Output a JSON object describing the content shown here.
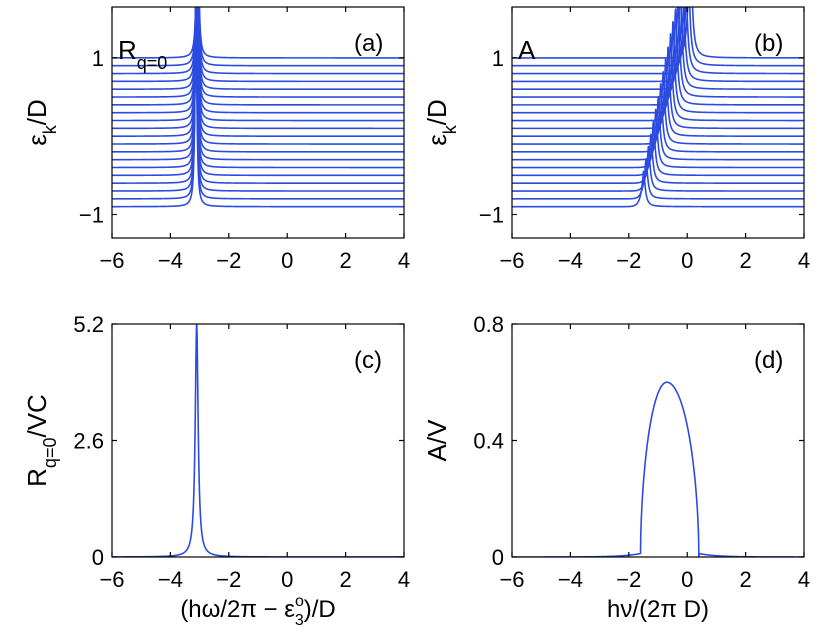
{
  "figure": {
    "line_color": "#2c4be0",
    "axis_color": "#000000"
  },
  "chart_data": [
    {
      "panel": "a",
      "type": "line",
      "panel_label": "(a)",
      "inset_label": "R",
      "inset_sub": "q=0",
      "ylabel": "ε",
      "ylabel_sub": "k",
      "ylabel_suffix": "/D",
      "xlim": [
        -6,
        4
      ],
      "ylim": [
        -1.3,
        1.65
      ],
      "xticks": [
        -6,
        -4,
        -2,
        0,
        2,
        4
      ],
      "xtick_labels": [
        "−6",
        "−4",
        "−2",
        "0",
        "2",
        "4"
      ],
      "yticks": [
        -1,
        1
      ],
      "ytick_labels": [
        "−1",
        "1"
      ],
      "series_description": "Stacked spectra, one per eps_k from -0.9 to 1.0 (20 curves), each with a sharp peak near x=-3.1",
      "offsets": [
        -0.9,
        -0.8,
        -0.7,
        -0.6,
        -0.5,
        -0.4,
        -0.3,
        -0.2,
        -0.1,
        0.0,
        0.1,
        0.2,
        0.3,
        0.4,
        0.5,
        0.6,
        0.7,
        0.8,
        0.9,
        1.0
      ],
      "peak_center": -3.1,
      "peak_slope": 0.03
    },
    {
      "panel": "b",
      "type": "line",
      "panel_label": "(b)",
      "inset_label": "A",
      "ylabel": "ε",
      "ylabel_sub": "k",
      "ylabel_suffix": "/D",
      "xlim": [
        -6,
        4
      ],
      "ylim": [
        -1.3,
        1.65
      ],
      "xticks": [
        -6,
        -4,
        -2,
        0,
        2,
        4
      ],
      "xtick_labels": [
        "−6",
        "−4",
        "−2",
        "0",
        "2",
        "4"
      ],
      "yticks": [
        -1,
        1
      ],
      "ytick_labels": [
        "−1",
        "1"
      ],
      "series_description": "Stacked spectra, one per eps_k from -0.9 to 1.0 (20 curves), peak position shifting from x=-1.5 to x=0.1",
      "offsets": [
        -0.9,
        -0.8,
        -0.7,
        -0.6,
        -0.5,
        -0.4,
        -0.3,
        -0.2,
        -0.1,
        0.0,
        0.1,
        0.2,
        0.3,
        0.4,
        0.5,
        0.6,
        0.7,
        0.8,
        0.9,
        1.0
      ],
      "peak_start": -1.5,
      "peak_end": 0.1
    },
    {
      "panel": "c",
      "type": "line",
      "panel_label": "(c)",
      "ylabel": "R",
      "ylabel_sub": "q=0",
      "ylabel_suffix": "/VC",
      "xlabel_main": "(hω/2π − ε",
      "xlabel_sub": "3",
      "xlabel_sup": "o",
      "xlabel_tail": ")/D",
      "xlim": [
        -6,
        4
      ],
      "ylim": [
        0,
        5.2
      ],
      "xticks": [
        -6,
        -4,
        -2,
        0,
        2,
        4
      ],
      "xtick_labels": [
        "−6",
        "−4",
        "−2",
        "0",
        "2",
        "4"
      ],
      "yticks": [
        0,
        2.6,
        5.2
      ],
      "ytick_labels": [
        "0",
        "2.6",
        "5.2"
      ],
      "peak_x": -3.1,
      "peak_y": 5.2,
      "peak_width": 0.06
    },
    {
      "panel": "d",
      "type": "line",
      "panel_label": "(d)",
      "ylabel": "A/V",
      "xlabel": "hν/(2π D)",
      "xlim": [
        -6,
        4
      ],
      "ylim": [
        0,
        0.8
      ],
      "xticks": [
        -6,
        -4,
        -2,
        0,
        2,
        4
      ],
      "xtick_labels": [
        "−6",
        "−4",
        "−2",
        "0",
        "2",
        "4"
      ],
      "yticks": [
        0,
        0.4,
        0.8
      ],
      "ytick_labels": [
        "0",
        "0.4",
        "0.8"
      ],
      "band_lo": -1.6,
      "band_hi": 0.4,
      "peak_y": 0.6,
      "peak_x": -0.7
    }
  ]
}
